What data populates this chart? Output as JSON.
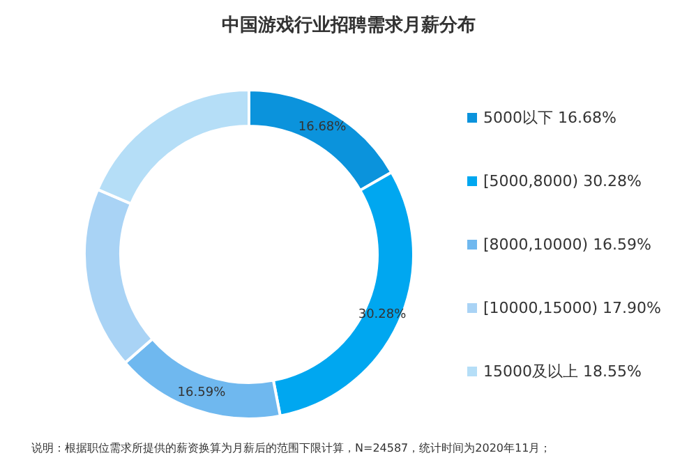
{
  "chart_data": {
    "type": "donut",
    "title": "中国游戏行业招聘需求月薪分布",
    "categories": [
      "5000以下 16.68%",
      "[5000,8000) 30.28%",
      "[8000,10000) 16.59%",
      "[10000,15000) 17.90%",
      "15000及以上 18.55%"
    ],
    "values": [
      16.68,
      30.28,
      16.59,
      17.9,
      18.55
    ],
    "colors": [
      "#0b93dc",
      "#00a7f0",
      "#6fb8ef",
      "#a9d3f5",
      "#b5def7"
    ],
    "value_labels": [
      "16.68%",
      "30.28%",
      "16.59%",
      null,
      null
    ],
    "legend": "right",
    "annotations": [
      "说明：根据职位需求所提供的薪资换算为月薪后的范围下限计算，N=24587，统计时间为2020年11月；"
    ]
  }
}
